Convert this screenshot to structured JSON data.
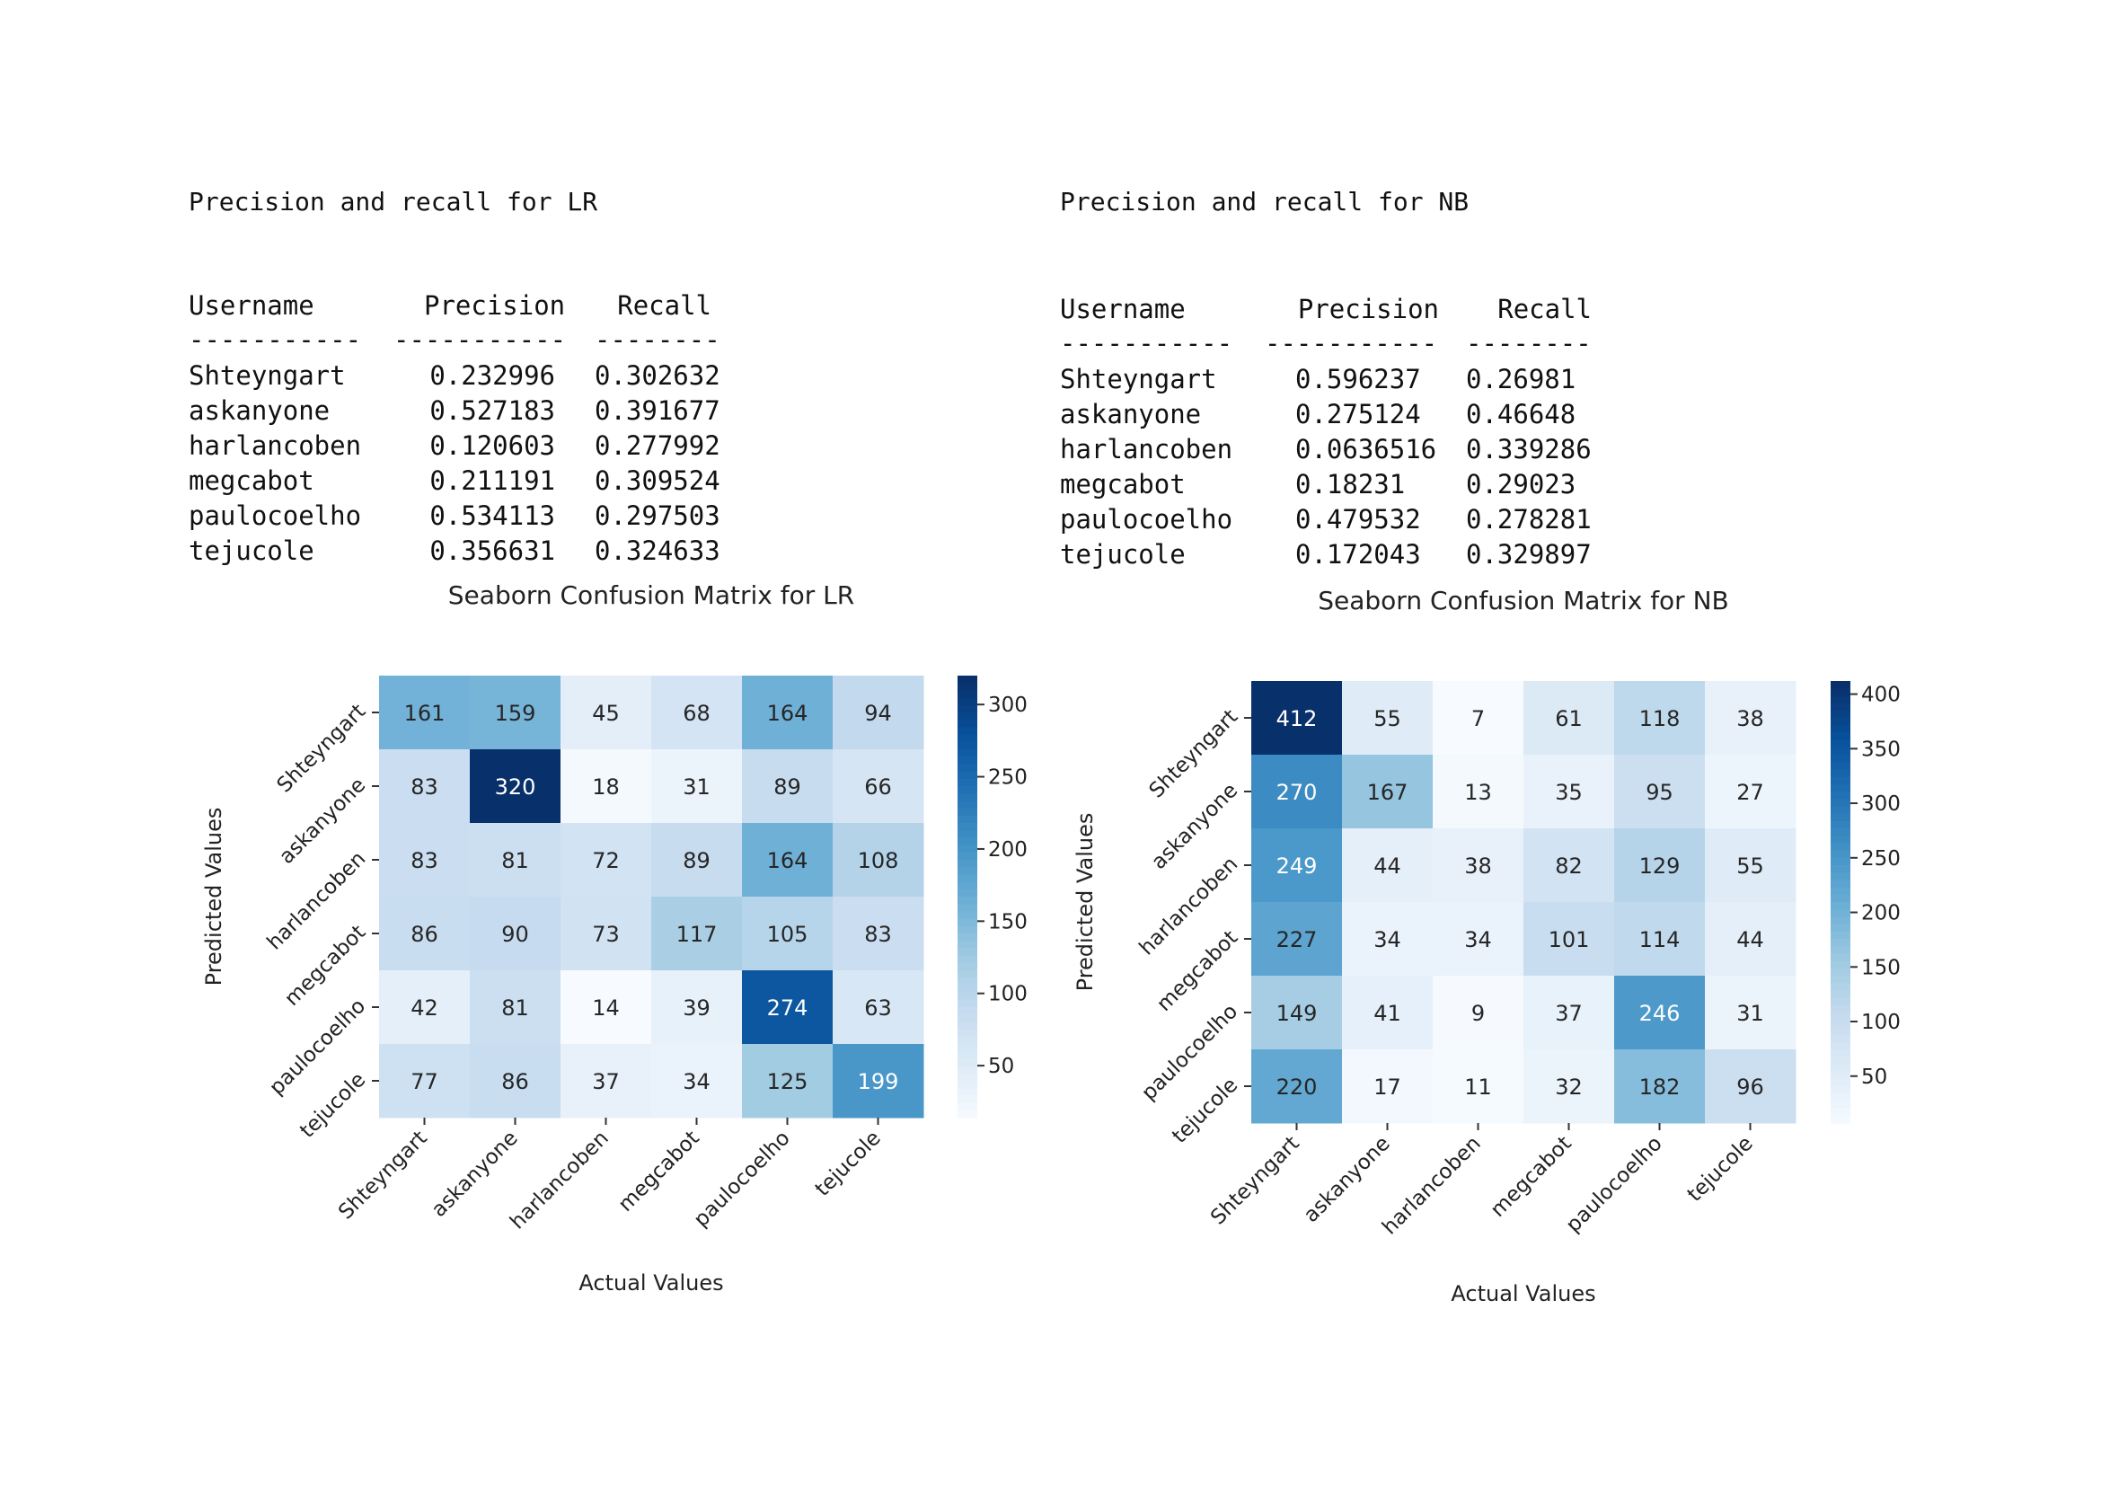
{
  "chart_data": [
    {
      "type": "heatmap",
      "report_title": "Precision and recall for LR",
      "table": {
        "headers": [
          "Username",
          "Precision",
          "Recall"
        ],
        "separators": [
          "-----------",
          "-----------",
          "--------"
        ],
        "rows": [
          [
            "Shteyngart",
            "0.232996",
            "0.302632"
          ],
          [
            "askanyone",
            "0.527183",
            "0.391677"
          ],
          [
            "harlancoben",
            "0.120603",
            "0.277992"
          ],
          [
            "megcabot",
            "0.211191",
            "0.309524"
          ],
          [
            "paulocoelho",
            "0.534113",
            "0.297503"
          ],
          [
            "tejucole",
            "0.356631",
            "0.324633"
          ]
        ]
      },
      "title": "Seaborn Confusion Matrix for LR",
      "xlabel": "Actual Values",
      "ylabel": "Predicted Values",
      "categories": [
        "Shteyngart",
        "askanyone",
        "harlancoben",
        "megcabot",
        "paulocoelho",
        "tejucole"
      ],
      "values": [
        [
          161,
          159,
          45,
          68,
          164,
          94
        ],
        [
          83,
          320,
          18,
          31,
          89,
          66
        ],
        [
          83,
          81,
          72,
          89,
          164,
          108
        ],
        [
          86,
          90,
          73,
          117,
          105,
          83
        ],
        [
          42,
          81,
          14,
          39,
          274,
          63
        ],
        [
          77,
          86,
          37,
          34,
          125,
          199
        ]
      ],
      "vmin": 14,
      "vmax": 320,
      "colorbar_ticks": [
        50,
        100,
        150,
        200,
        250,
        300
      ],
      "colormap": "Blues"
    },
    {
      "type": "heatmap",
      "report_title": "Precision and recall for NB",
      "table": {
        "headers": [
          "Username",
          "Precision",
          "Recall"
        ],
        "separators": [
          "-----------",
          "-----------",
          "--------"
        ],
        "rows": [
          [
            "Shteyngart",
            "0.596237",
            "0.26981"
          ],
          [
            "askanyone",
            "0.275124",
            "0.46648"
          ],
          [
            "harlancoben",
            "0.0636516",
            "0.339286"
          ],
          [
            "megcabot",
            "0.18231",
            "0.29023"
          ],
          [
            "paulocoelho",
            "0.479532",
            "0.278281"
          ],
          [
            "tejucole",
            "0.172043",
            "0.329897"
          ]
        ]
      },
      "title": "Seaborn Confusion Matrix for NB",
      "xlabel": "Actual Values",
      "ylabel": "Predicted Values",
      "categories": [
        "Shteyngart",
        "askanyone",
        "harlancoben",
        "megcabot",
        "paulocoelho",
        "tejucole"
      ],
      "values": [
        [
          412,
          55,
          7,
          61,
          118,
          38
        ],
        [
          270,
          167,
          13,
          35,
          95,
          27
        ],
        [
          249,
          44,
          38,
          82,
          129,
          55
        ],
        [
          227,
          34,
          34,
          101,
          114,
          44
        ],
        [
          149,
          41,
          9,
          37,
          246,
          31
        ],
        [
          220,
          17,
          11,
          32,
          182,
          96
        ]
      ],
      "vmin": 7,
      "vmax": 412,
      "colorbar_ticks": [
        50,
        100,
        150,
        200,
        250,
        300,
        350,
        400
      ],
      "colormap": "Blues"
    }
  ]
}
